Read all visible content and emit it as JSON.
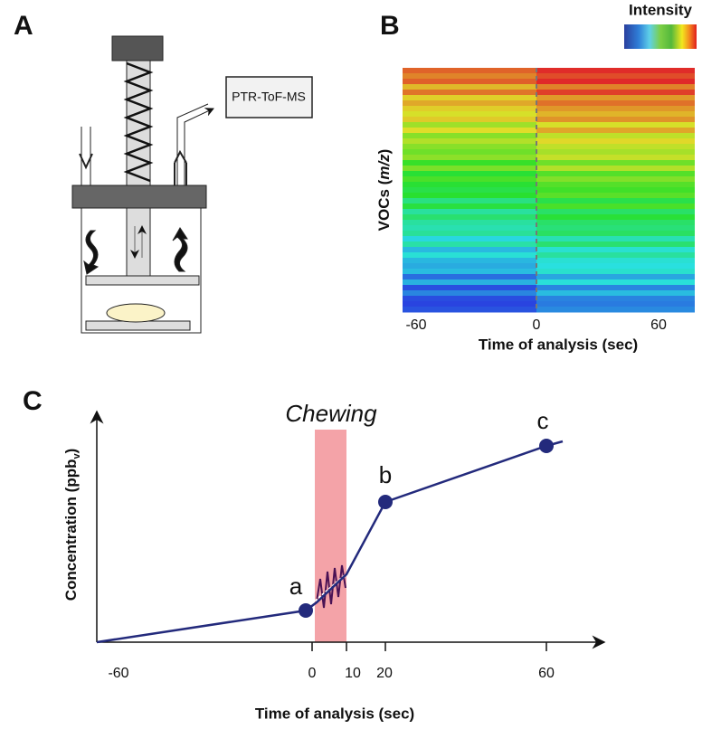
{
  "panels": {
    "A": {
      "label": "A",
      "instrument": "PTR-ToF-MS"
    },
    "B": {
      "label": "B",
      "colorbar_title": "Intensity",
      "y_label": {
        "before": "VOCs (",
        "italic": "m/z",
        "after": ")"
      },
      "x_ticks": [
        "-60",
        "0",
        "60"
      ],
      "x_label": "Time of analysis (sec)"
    },
    "C": {
      "label": "C",
      "phase": "Chewing",
      "y_label": {
        "before": "Concentration (ppb",
        "subscript": "v",
        "after": ")"
      },
      "points": [
        "a",
        "b",
        "c"
      ],
      "x_ticks": [
        "-60",
        "0",
        "10",
        "20",
        "60"
      ],
      "x_label": "Time of analysis (sec)"
    }
  }
}
